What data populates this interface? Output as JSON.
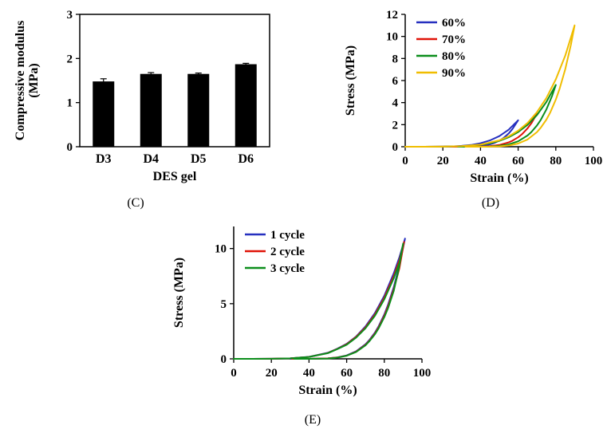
{
  "figure": {
    "background": "#ffffff",
    "text_color": "#000000"
  },
  "chart_data": [
    {
      "id": "C",
      "type": "bar",
      "caption": "(C)",
      "categories": [
        "D3",
        "D4",
        "D5",
        "D6"
      ],
      "values": [
        1.48,
        1.65,
        1.65,
        1.87
      ],
      "errors": [
        0.06,
        0.03,
        0.02,
        0.02
      ],
      "xlabel": "DES gel",
      "ylabel": "Compressive modulus (MPa)",
      "ylabel_lines": [
        "Compressive modulus",
        "(MPa)"
      ],
      "ylim": [
        0,
        3
      ],
      "yticks": [
        0,
        1,
        2,
        3
      ],
      "bar_color": "#000000",
      "frame": "box",
      "legend_position": "none"
    },
    {
      "id": "D",
      "type": "line",
      "caption": "(D)",
      "xlabel": "Strain (%)",
      "ylabel": "Stress (MPa)",
      "xlim": [
        0,
        100
      ],
      "xticks": [
        0,
        20,
        40,
        60,
        80,
        100
      ],
      "ylim": [
        0,
        12
      ],
      "yticks": [
        0,
        2,
        4,
        6,
        8,
        10,
        12
      ],
      "legend_position": "top-left",
      "series": [
        {
          "name": "60%",
          "color": "#2630bf",
          "points": [
            [
              0,
              0
            ],
            [
              10,
              0
            ],
            [
              20,
              0.01
            ],
            [
              25,
              0.03
            ],
            [
              30,
              0.08
            ],
            [
              35,
              0.16
            ],
            [
              40,
              0.32
            ],
            [
              45,
              0.57
            ],
            [
              50,
              0.96
            ],
            [
              55,
              1.55
            ],
            [
              60,
              2.4
            ],
            [
              57,
              1.61
            ],
            [
              55,
              1.21
            ],
            [
              52,
              0.76
            ],
            [
              50,
              0.55
            ],
            [
              47,
              0.32
            ],
            [
              45,
              0.21
            ],
            [
              42,
              0.11
            ],
            [
              40,
              0.07
            ],
            [
              35,
              0.01
            ],
            [
              30,
              0.01
            ],
            [
              25,
              0
            ],
            [
              21,
              0
            ]
          ]
        },
        {
          "name": "70%",
          "color": "#e01408",
          "points": [
            [
              0,
              0
            ],
            [
              10,
              0
            ],
            [
              20,
              0.01
            ],
            [
              30,
              0.04
            ],
            [
              35,
              0.09
            ],
            [
              40,
              0.18
            ],
            [
              45,
              0.33
            ],
            [
              50,
              0.56
            ],
            [
              55,
              0.9
            ],
            [
              60,
              1.39
            ],
            [
              65,
              2.08
            ],
            [
              70,
              3.0
            ],
            [
              67,
              2.12
            ],
            [
              65,
              1.67
            ],
            [
              62,
              1.13
            ],
            [
              60,
              0.85
            ],
            [
              57,
              0.55
            ],
            [
              55,
              0.4
            ],
            [
              50,
              0.16
            ],
            [
              45,
              0.05
            ],
            [
              40,
              0.01
            ],
            [
              33,
              0
            ],
            [
              25,
              0
            ]
          ]
        },
        {
          "name": "80%",
          "color": "#0c8e1c",
          "points": [
            [
              0,
              0
            ],
            [
              10,
              0
            ],
            [
              20,
              0.01
            ],
            [
              30,
              0.04
            ],
            [
              40,
              0.18
            ],
            [
              45,
              0.32
            ],
            [
              50,
              0.53
            ],
            [
              55,
              0.86
            ],
            [
              60,
              1.33
            ],
            [
              65,
              1.98
            ],
            [
              70,
              2.87
            ],
            [
              75,
              4.06
            ],
            [
              80,
              5.6
            ],
            [
              78,
              4.6
            ],
            [
              75,
              3.38
            ],
            [
              72,
              2.43
            ],
            [
              70,
              1.93
            ],
            [
              67,
              1.33
            ],
            [
              65,
              1.02
            ],
            [
              60,
              0.49
            ],
            [
              55,
              0.21
            ],
            [
              50,
              0.08
            ],
            [
              45,
              0.02
            ],
            [
              38,
              0
            ],
            [
              28,
              0
            ]
          ]
        },
        {
          "name": "90%",
          "color": "#f0bd00",
          "points": [
            [
              0,
              0
            ],
            [
              10,
              0
            ],
            [
              20,
              0.01
            ],
            [
              30,
              0.05
            ],
            [
              40,
              0.19
            ],
            [
              50,
              0.58
            ],
            [
              55,
              0.94
            ],
            [
              60,
              1.45
            ],
            [
              65,
              2.16
            ],
            [
              70,
              3.14
            ],
            [
              75,
              4.42
            ],
            [
              80,
              6.11
            ],
            [
              85,
              8.25
            ],
            [
              90,
              11
            ],
            [
              88,
              9.23
            ],
            [
              85,
              7.01
            ],
            [
              82,
              5.24
            ],
            [
              80,
              4.27
            ],
            [
              77,
              3.09
            ],
            [
              75,
              2.46
            ],
            [
              72,
              1.72
            ],
            [
              70,
              1.33
            ],
            [
              65,
              0.66
            ],
            [
              60,
              0.29
            ],
            [
              55,
              0.11
            ],
            [
              50,
              0.03
            ],
            [
              42,
              0
            ],
            [
              32,
              0
            ]
          ]
        }
      ]
    },
    {
      "id": "E",
      "type": "line",
      "caption": "(E)",
      "xlabel": "Strain (%)",
      "ylabel": "Stress (MPa)",
      "xlim": [
        0,
        100
      ],
      "xticks": [
        0,
        20,
        40,
        60,
        80,
        100
      ],
      "ylim": [
        0,
        12
      ],
      "yticks": [
        0,
        5,
        10
      ],
      "legend_position": "top-left",
      "series": [
        {
          "name": "1 cycle",
          "color": "#2630bf",
          "points": [
            [
              0,
              0
            ],
            [
              10,
              0
            ],
            [
              20,
              0.01
            ],
            [
              30,
              0.04
            ],
            [
              40,
              0.18
            ],
            [
              50,
              0.55
            ],
            [
              55,
              0.92
            ],
            [
              60,
              1.36
            ],
            [
              65,
              2.02
            ],
            [
              70,
              2.94
            ],
            [
              75,
              4.15
            ],
            [
              80,
              5.72
            ],
            [
              85,
              7.75
            ],
            [
              88,
              9.21
            ],
            [
              91,
              10.9
            ],
            [
              88,
              8.47
            ],
            [
              85,
              6.49
            ],
            [
              82,
              4.91
            ],
            [
              80,
              4.03
            ],
            [
              77,
              2.96
            ],
            [
              75,
              2.38
            ],
            [
              72,
              1.69
            ],
            [
              70,
              1.32
            ],
            [
              65,
              0.68
            ],
            [
              60,
              0.31
            ],
            [
              55,
              0.13
            ],
            [
              50,
              0.04
            ],
            [
              40,
              0
            ],
            [
              30,
              0
            ]
          ]
        },
        {
          "name": "2 cycle",
          "color": "#e01408",
          "points": [
            [
              0,
              0
            ],
            [
              10,
              0
            ],
            [
              20,
              0.01
            ],
            [
              30,
              0.04
            ],
            [
              40,
              0.17
            ],
            [
              50,
              0.53
            ],
            [
              55,
              0.9
            ],
            [
              60,
              1.32
            ],
            [
              65,
              1.98
            ],
            [
              70,
              2.85
            ],
            [
              75,
              4.02
            ],
            [
              80,
              5.55
            ],
            [
              85,
              7.5
            ],
            [
              88,
              8.95
            ],
            [
              90.5,
              10.6
            ],
            [
              88,
              8.2
            ],
            [
              85,
              6.3
            ],
            [
              82,
              4.75
            ],
            [
              80,
              3.9
            ],
            [
              77,
              2.86
            ],
            [
              75,
              2.3
            ],
            [
              72,
              1.63
            ],
            [
              70,
              1.27
            ],
            [
              65,
              0.65
            ],
            [
              60,
              0.29
            ],
            [
              55,
              0.12
            ],
            [
              50,
              0.04
            ],
            [
              40,
              0
            ],
            [
              31,
              0
            ]
          ]
        },
        {
          "name": "3 cycle",
          "color": "#0c8e1c",
          "points": [
            [
              0,
              0
            ],
            [
              10,
              0
            ],
            [
              20,
              0.01
            ],
            [
              30,
              0.04
            ],
            [
              40,
              0.17
            ],
            [
              50,
              0.51
            ],
            [
              55,
              0.88
            ],
            [
              60,
              1.28
            ],
            [
              65,
              1.92
            ],
            [
              70,
              2.77
            ],
            [
              75,
              3.9
            ],
            [
              80,
              5.4
            ],
            [
              85,
              7.3
            ],
            [
              88,
              8.7
            ],
            [
              90,
              10.45
            ],
            [
              87.5,
              8.0
            ],
            [
              85,
              6.15
            ],
            [
              82,
              4.6
            ],
            [
              80,
              3.78
            ],
            [
              77,
              2.77
            ],
            [
              75,
              2.23
            ],
            [
              72,
              1.58
            ],
            [
              70,
              1.22
            ],
            [
              65,
              0.62
            ],
            [
              60,
              0.28
            ],
            [
              55,
              0.11
            ],
            [
              50,
              0.03
            ],
            [
              40,
              0
            ],
            [
              32,
              0
            ]
          ]
        }
      ]
    }
  ]
}
